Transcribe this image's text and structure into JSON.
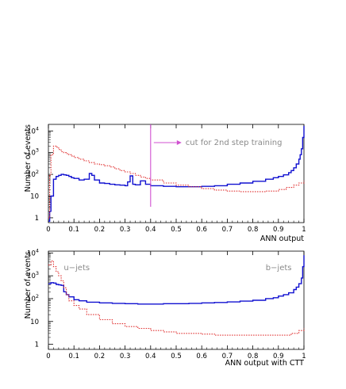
{
  "chart_data": [
    {
      "type": "line",
      "xlabel": "ANN output",
      "ylabel": "Number of events",
      "xlim": [
        0,
        1
      ],
      "ylim": [
        0.6,
        20000
      ],
      "yscale": "log",
      "x_ticks": [
        "0",
        "0.1",
        "0.2",
        "0.3",
        "0.4",
        "0.5",
        "0.6",
        "0.7",
        "0.8",
        "0.9",
        "1"
      ],
      "y_ticks": [
        {
          "value": 1,
          "base": "1",
          "exp": ""
        },
        {
          "value": 10,
          "base": "10",
          "exp": ""
        },
        {
          "value": 100,
          "base": "10",
          "exp": "2"
        },
        {
          "value": 1000,
          "base": "10",
          "exp": "3"
        },
        {
          "value": 10000,
          "base": "10",
          "exp": "4"
        }
      ],
      "annotation": {
        "text": "cut for 2nd step training",
        "x": 0.4
      },
      "series": [
        {
          "style": "solid",
          "color": "#1010d0",
          "x": [
            0.0,
            0.005,
            0.01,
            0.02,
            0.03,
            0.04,
            0.05,
            0.06,
            0.07,
            0.08,
            0.09,
            0.1,
            0.12,
            0.14,
            0.16,
            0.17,
            0.18,
            0.2,
            0.22,
            0.24,
            0.26,
            0.28,
            0.3,
            0.31,
            0.32,
            0.33,
            0.34,
            0.36,
            0.38,
            0.4,
            0.45,
            0.5,
            0.55,
            0.6,
            0.65,
            0.7,
            0.75,
            0.8,
            0.85,
            0.88,
            0.9,
            0.92,
            0.94,
            0.95,
            0.96,
            0.97,
            0.98,
            0.985,
            0.99,
            0.995,
            1.0
          ],
          "y": [
            0.7,
            2,
            10,
            60,
            80,
            90,
            100,
            95,
            90,
            80,
            70,
            65,
            55,
            60,
            110,
            90,
            55,
            40,
            38,
            35,
            33,
            32,
            30,
            45,
            85,
            35,
            33,
            50,
            35,
            30,
            28,
            27,
            27,
            28,
            30,
            35,
            40,
            48,
            60,
            70,
            80,
            95,
            120,
            150,
            200,
            300,
            500,
            800,
            1500,
            5000,
            17000
          ]
        },
        {
          "style": "dotted",
          "color": "#e03030",
          "x": [
            0.0,
            0.005,
            0.01,
            0.02,
            0.03,
            0.04,
            0.05,
            0.06,
            0.07,
            0.08,
            0.09,
            0.1,
            0.12,
            0.14,
            0.16,
            0.18,
            0.2,
            0.22,
            0.24,
            0.26,
            0.28,
            0.3,
            0.32,
            0.34,
            0.36,
            0.38,
            0.4,
            0.45,
            0.5,
            0.55,
            0.6,
            0.65,
            0.7,
            0.75,
            0.8,
            0.85,
            0.9,
            0.93,
            0.96,
            0.98,
            1.0
          ],
          "y": [
            1,
            100,
            800,
            2000,
            1800,
            1400,
            1100,
            1000,
            900,
            800,
            700,
            600,
            500,
            420,
            350,
            300,
            280,
            250,
            220,
            180,
            150,
            130,
            110,
            90,
            75,
            65,
            55,
            40,
            32,
            27,
            22,
            19,
            17,
            16,
            16,
            17,
            20,
            25,
            32,
            40,
            50
          ]
        }
      ]
    },
    {
      "type": "line",
      "xlabel": "ANN output with CTT",
      "ylabel": "Number of events",
      "xlim": [
        0,
        1
      ],
      "ylim": [
        0.6,
        12000
      ],
      "yscale": "log",
      "x_ticks": [
        "0",
        "0.1",
        "0.2",
        "0.3",
        "0.4",
        "0.5",
        "0.6",
        "0.7",
        "0.8",
        "0.9",
        "1"
      ],
      "y_ticks": [
        {
          "value": 1,
          "base": "1",
          "exp": ""
        },
        {
          "value": 10,
          "base": "10",
          "exp": ""
        },
        {
          "value": 100,
          "base": "10",
          "exp": "2"
        },
        {
          "value": 1000,
          "base": "10",
          "exp": "3"
        },
        {
          "value": 10000,
          "base": "10",
          "exp": "4"
        }
      ],
      "labels": [
        {
          "text": "u−jets",
          "x": 0.06
        },
        {
          "text": "b−jets",
          "x": 0.85
        }
      ],
      "series": [
        {
          "style": "solid",
          "color": "#1010d0",
          "x": [
            0.0,
            0.01,
            0.02,
            0.03,
            0.04,
            0.05,
            0.06,
            0.07,
            0.08,
            0.1,
            0.12,
            0.15,
            0.2,
            0.25,
            0.3,
            0.35,
            0.4,
            0.45,
            0.5,
            0.55,
            0.6,
            0.65,
            0.7,
            0.75,
            0.8,
            0.85,
            0.88,
            0.9,
            0.92,
            0.94,
            0.96,
            0.97,
            0.98,
            0.99,
            0.995,
            1.0
          ],
          "y": [
            450,
            500,
            480,
            420,
            400,
            380,
            200,
            150,
            120,
            90,
            80,
            70,
            65,
            62,
            60,
            58,
            58,
            60,
            60,
            62,
            65,
            68,
            72,
            78,
            85,
            100,
            110,
            130,
            150,
            180,
            250,
            320,
            450,
            800,
            2500,
            8000
          ]
        },
        {
          "style": "dotted",
          "color": "#e03030",
          "x": [
            0.0,
            0.01,
            0.02,
            0.03,
            0.04,
            0.05,
            0.06,
            0.07,
            0.08,
            0.1,
            0.12,
            0.15,
            0.2,
            0.25,
            0.3,
            0.35,
            0.4,
            0.45,
            0.5,
            0.55,
            0.6,
            0.65,
            0.7,
            0.75,
            0.8,
            0.85,
            0.9,
            0.95,
            0.98,
            1.0
          ],
          "y": [
            3000,
            4500,
            2500,
            1500,
            1000,
            600,
            300,
            150,
            80,
            50,
            35,
            20,
            12,
            8,
            6,
            5,
            4,
            3.5,
            3,
            3,
            2.8,
            2.5,
            2.5,
            2.5,
            2.5,
            2.5,
            2.5,
            3,
            4,
            5
          ]
        }
      ]
    }
  ]
}
